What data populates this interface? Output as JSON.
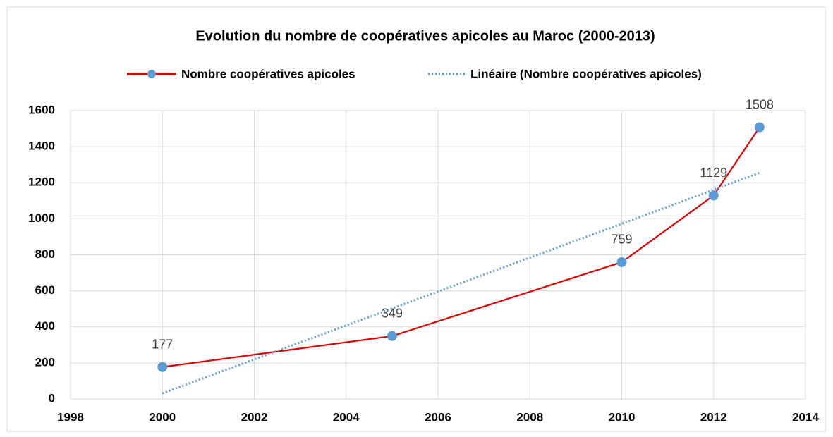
{
  "chart_data": {
    "type": "line",
    "title": "Evolution du nombre de coopératives apicoles au Maroc (2000-2013)",
    "series": [
      {
        "name": "Nombre coopératives apicoles",
        "color": "#e00000",
        "marker_color": "#5b9bd5",
        "style": "solid",
        "x": [
          2000,
          2005,
          2010,
          2012,
          2013
        ],
        "values": [
          177,
          349,
          759,
          1129,
          1508
        ]
      },
      {
        "name": "Linéaire (Nombre coopératives apicoles)",
        "color": "#5b9bd5",
        "style": "dotted",
        "x": [
          2000,
          2013
        ],
        "values": [
          31,
          1255
        ]
      }
    ],
    "xlim": [
      1998,
      2014
    ],
    "xticks": [
      1998,
      2000,
      2002,
      2004,
      2006,
      2008,
      2010,
      2012,
      2014
    ],
    "ylim": [
      0,
      1600
    ],
    "yticks": [
      0,
      200,
      400,
      600,
      800,
      1000,
      1200,
      1400,
      1600
    ],
    "grid": true,
    "legend": "top"
  }
}
